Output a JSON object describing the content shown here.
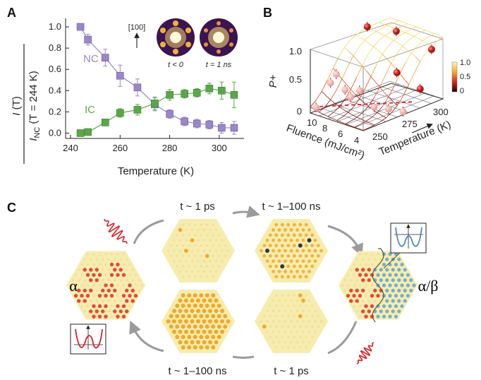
{
  "panel_labels": {
    "a": "A",
    "b": "B",
    "c": "C"
  },
  "chart_data": [
    {
      "type": "scatter",
      "panel": "A",
      "xlabel": "Temperature (K)",
      "ylabel_top": "I (T)",
      "ylabel_bottom": "I_NC (T = 244 K)",
      "xticks": [
        "240",
        "260",
        "280",
        "300"
      ],
      "yticks": [
        "0.0",
        "0.2",
        "0.4",
        "0.6",
        "0.8",
        "1.0"
      ],
      "xlim": [
        238,
        310
      ],
      "ylim": [
        -0.05,
        1.08
      ],
      "annotations": {
        "direction": "[100]",
        "inset_left": "t < 0",
        "inset_right": "t = 1 ns"
      },
      "series": [
        {
          "name": "NC",
          "color": "#9a86c8",
          "x": [
            244,
            247,
            254,
            260,
            267,
            274,
            280,
            286,
            291,
            296,
            301,
            306
          ],
          "y": [
            1.0,
            0.88,
            0.71,
            0.54,
            0.43,
            0.27,
            0.18,
            0.11,
            0.09,
            0.08,
            0.05,
            0.05
          ],
          "err": [
            0.02,
            0.05,
            0.08,
            0.1,
            0.08,
            0.06,
            0.04,
            0.04,
            0.04,
            0.04,
            0.05,
            0.06
          ]
        },
        {
          "name": "IC",
          "color": "#5aa74a",
          "x": [
            244,
            247,
            254,
            260,
            267,
            274,
            280,
            286,
            291,
            296,
            301,
            306
          ],
          "y": [
            0.0,
            0.01,
            0.1,
            0.19,
            0.22,
            0.28,
            0.36,
            0.37,
            0.38,
            0.42,
            0.4,
            0.36
          ],
          "err": [
            0.03,
            0.03,
            0.03,
            0.04,
            0.05,
            0.06,
            0.05,
            0.04,
            0.04,
            0.05,
            0.08,
            0.12
          ]
        }
      ]
    },
    {
      "type": "scatter",
      "panel": "B",
      "zlabel": "P+",
      "xlabel": "Fluence (mJ/cm²)",
      "ylabel": "Temperature (K)",
      "zticks": [
        "0",
        "0.5",
        "1.0"
      ],
      "fluence_ticks": [
        "10",
        "8",
        "6",
        "4"
      ],
      "temperature_ticks": [
        "250",
        "275",
        "300"
      ],
      "colorbar_ticks": [
        "1.0",
        "0.5",
        "0"
      ],
      "points": [
        {
          "fluence": 10,
          "temperature": 245,
          "p": 0.05
        },
        {
          "fluence": 9,
          "temperature": 250,
          "p": 0.45
        },
        {
          "fluence": 9,
          "temperature": 255,
          "p": 0.55
        },
        {
          "fluence": 8,
          "temperature": 255,
          "p": 0.35
        },
        {
          "fluence": 8,
          "temperature": 260,
          "p": 0.2
        },
        {
          "fluence": 7,
          "temperature": 260,
          "p": 0.35
        },
        {
          "fluence": 6,
          "temperature": 265,
          "p": 0.1
        },
        {
          "fluence": 5,
          "temperature": 270,
          "p": 0.08
        },
        {
          "fluence": 4,
          "temperature": 275,
          "p": 0.05
        },
        {
          "fluence": 6,
          "temperature": 285,
          "p": 0.5
        },
        {
          "fluence": 8,
          "temperature": 300,
          "p": 0.95
        },
        {
          "fluence": 10,
          "temperature": 290,
          "p": 1.0
        },
        {
          "fluence": 4,
          "temperature": 290,
          "p": 0.3
        },
        {
          "fluence": 4,
          "temperature": 300,
          "p": 0.85
        }
      ]
    }
  ],
  "panel_c": {
    "alpha_label": "α",
    "alpha_beta_label": "α/β",
    "top_left_time": "t ~ 1 ps",
    "top_right_time": "t ~ 1–100 ns",
    "bottom_left_time": "t ~ 1–100 ns",
    "bottom_right_time": "t ~ 1 ps",
    "colors": {
      "hex_bg": "#f6ecad",
      "red_dot": "#e24a3a",
      "orange_dot": "#f1a82a",
      "blue_dot": "#5aa3d6",
      "dark_dot": "#2d3a4a",
      "arrow": "#9b9b9b",
      "pulse": "#d81f26"
    }
  }
}
